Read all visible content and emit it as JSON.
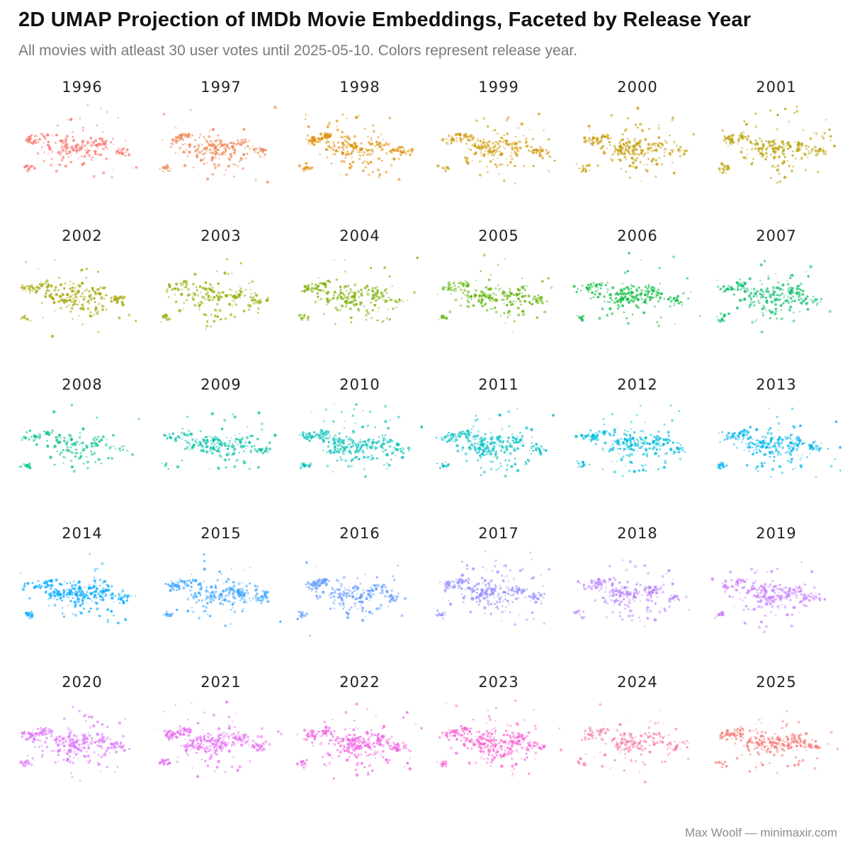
{
  "chart_data": {
    "type": "scatter",
    "title": "2D UMAP Projection of IMDb Movie Embeddings, Faceted by Release Year",
    "subtitle": "All movies with atleast 30 user votes until 2025-05-10. Colors represent release year.",
    "caption": "Max Woolf — minimaxir.com",
    "xlabel": "",
    "ylabel": "",
    "grid": false,
    "legend": "none",
    "facet_layout": {
      "columns": 6,
      "rows": 5
    },
    "xlim": [
      -8,
      8
    ],
    "ylim": [
      -6,
      6
    ],
    "panels": [
      {
        "year": "1996",
        "color": "#F8766D",
        "density": 0.45
      },
      {
        "year": "1997",
        "color": "#EC8350",
        "density": 0.5
      },
      {
        "year": "1998",
        "color": "#DE8C00",
        "density": 0.55
      },
      {
        "year": "1999",
        "color": "#CD9600",
        "density": 0.5
      },
      {
        "year": "2000",
        "color": "#C49A00",
        "density": 0.5
      },
      {
        "year": "2001",
        "color": "#B79F00",
        "density": 0.5
      },
      {
        "year": "2002",
        "color": "#A3A500",
        "density": 0.45
      },
      {
        "year": "2003",
        "color": "#93AA00",
        "density": 0.35
      },
      {
        "year": "2004",
        "color": "#7CAE00",
        "density": 0.4
      },
      {
        "year": "2005",
        "color": "#5BB300",
        "density": 0.45
      },
      {
        "year": "2006",
        "color": "#00BA38",
        "density": 0.45
      },
      {
        "year": "2007",
        "color": "#00BE67",
        "density": 0.45
      },
      {
        "year": "2008",
        "color": "#00C08B",
        "density": 0.2
      },
      {
        "year": "2009",
        "color": "#00C1A3",
        "density": 0.35
      },
      {
        "year": "2010",
        "color": "#00BFB7",
        "density": 0.6
      },
      {
        "year": "2011",
        "color": "#00BFC4",
        "density": 0.65
      },
      {
        "year": "2012",
        "color": "#00BBDA",
        "density": 0.6
      },
      {
        "year": "2013",
        "color": "#00B4EF",
        "density": 0.55
      },
      {
        "year": "2014",
        "color": "#00A9FF",
        "density": 0.7
      },
      {
        "year": "2015",
        "color": "#35A2FF",
        "density": 0.55
      },
      {
        "year": "2016",
        "color": "#619CFF",
        "density": 0.5
      },
      {
        "year": "2017",
        "color": "#9590FF",
        "density": 0.7
      },
      {
        "year": "2018",
        "color": "#B983FF",
        "density": 0.5
      },
      {
        "year": "2019",
        "color": "#C77CFF",
        "density": 0.6
      },
      {
        "year": "2020",
        "color": "#DB72FB",
        "density": 0.65
      },
      {
        "year": "2021",
        "color": "#E76BF3",
        "density": 0.7
      },
      {
        "year": "2022",
        "color": "#F263E2",
        "density": 0.75
      },
      {
        "year": "2023",
        "color": "#FA62D3",
        "density": 0.75
      },
      {
        "year": "2024",
        "color": "#F77AA8",
        "density": 0.35
      },
      {
        "year": "2025",
        "color": "#F5736F",
        "density": 0.55
      }
    ]
  }
}
